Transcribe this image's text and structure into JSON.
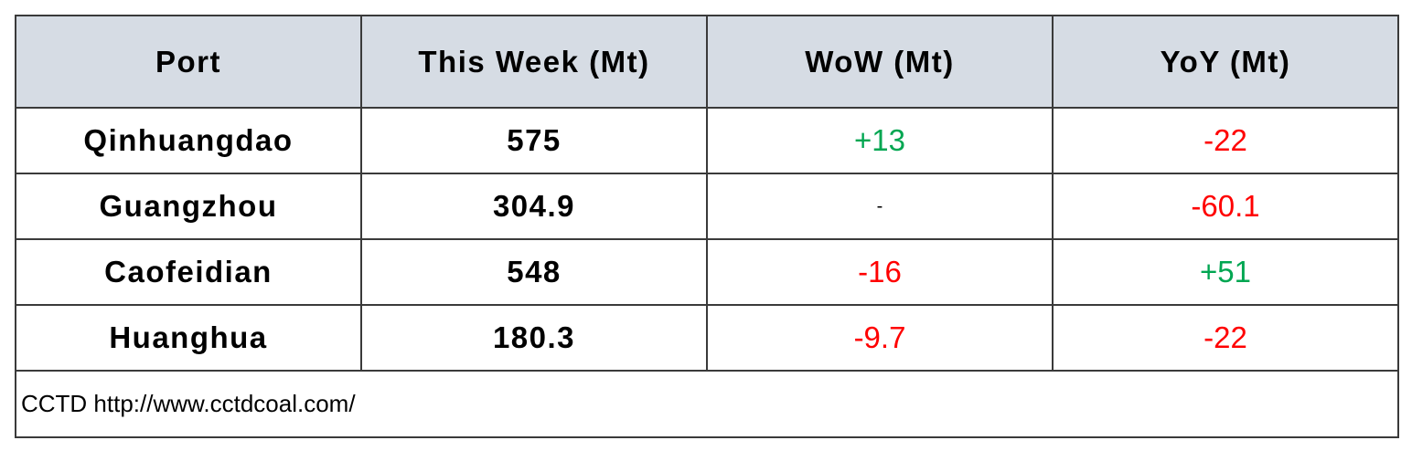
{
  "table": {
    "header": [
      "Port",
      "This Week (Mt)",
      "WoW (Mt)",
      "YoY (Mt)"
    ],
    "rows": [
      [
        "Qinhuangdao",
        "575",
        "+13",
        "-22"
      ],
      [
        "Guangzhou",
        "304.9",
        "-",
        "-60.1"
      ],
      [
        "Caofeidian",
        "548",
        "-16",
        "+51"
      ],
      [
        "Huanghua",
        "180.3",
        "-9.7",
        "-22"
      ]
    ],
    "source": "CCTD http://www.cctdcoal.com/"
  }
}
